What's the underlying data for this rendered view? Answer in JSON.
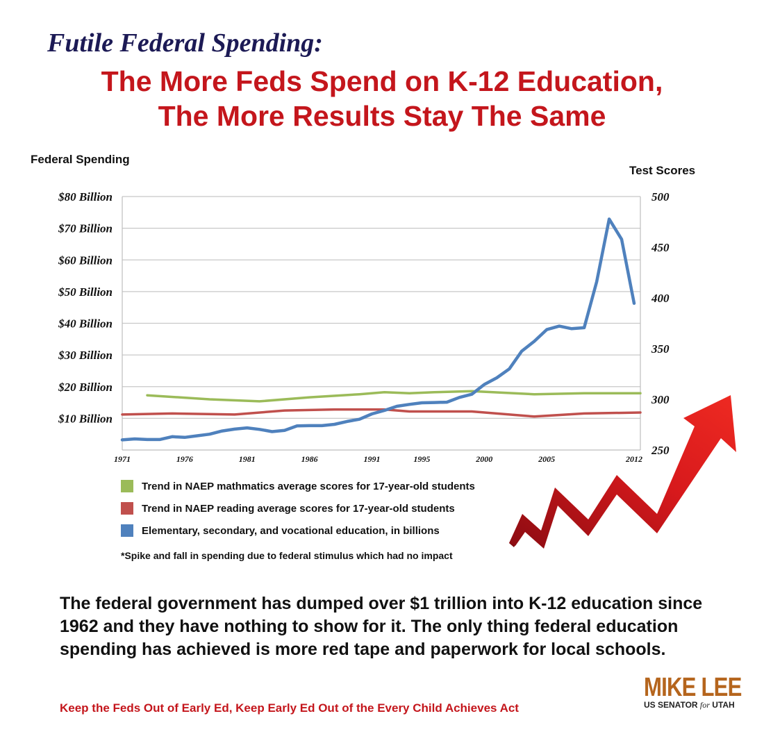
{
  "kicker": "Futile Federal Spending:",
  "headline": {
    "line1": "The More Feds Spend on K-12 Education,",
    "line2": "The More Results Stay The Same"
  },
  "axis_titles": {
    "left": "Federal Spending",
    "right": "Test Scores"
  },
  "legend": [
    {
      "label": "Trend in NAEP mathmatics average scores for 17-year-old students",
      "color": "#9bbb59"
    },
    {
      "label": "Trend in NAEP reading average scores for 17-year-old students",
      "color": "#c0504d"
    },
    {
      "label": "Elementary, secondary, and vocational education, in billions",
      "color": "#4f81bd"
    }
  ],
  "footnote": "*Spike and fall in spending due to federal stimulus which had no impact",
  "body_text": "The federal government has dumped over $1 trillion into K-12 education since 1962 and they have nothing to show for it. The only thing federal education spending has achieved is more red tape and paperwork for local schools.",
  "tagline": "Keep the Feds Out of Early Ed, Keep Early Ed Out of the Every Child Achieves Act",
  "brand": {
    "name": "MIKE LEE",
    "sub_prefix": "US SENATOR",
    "sub_for": "for",
    "sub_state": "UTAH",
    "color": "#b5651d"
  },
  "decor": {
    "arrow_icon": "red-zigzag-up-arrow",
    "arrow_color": "#d7191c"
  },
  "chart_data": {
    "type": "line",
    "title": "",
    "xlabel": "",
    "ylabel_left": "Federal Spending",
    "ylabel_right": "Test Scores",
    "x_ticks": [
      "1971",
      "1976",
      "1981",
      "1986",
      "1991",
      "1995",
      "2000",
      "2005",
      "2012"
    ],
    "y_left_ticks": [
      "$10 Billion",
      "$20 Billion",
      "$30 Billion",
      "$40 Billion",
      "$50 Billion",
      "$60 Billion",
      "$70 Billion",
      "$80 Billion"
    ],
    "y_left_lim": [
      0,
      80
    ],
    "y_right_ticks": [
      "250",
      "300",
      "350",
      "400",
      "450",
      "500"
    ],
    "y_right_lim": [
      250,
      500
    ],
    "x_lim": [
      1971,
      2012.5
    ],
    "grid": "horizontal",
    "legend_position": "bottom-left",
    "series": [
      {
        "name": "Trend in NAEP mathmatics average scores for 17-year-old students",
        "axis": "right",
        "color": "#9bbb59",
        "x": [
          1973,
          1978,
          1982,
          1986,
          1990,
          1992,
          1994,
          1996,
          1999,
          2004,
          2008,
          2012.5
        ],
        "values": [
          304,
          300,
          298,
          302,
          305,
          307,
          306,
          307,
          308,
          305,
          306,
          306
        ]
      },
      {
        "name": "Trend in NAEP reading average scores for 17-year-old students",
        "axis": "right",
        "color": "#c0504d",
        "x": [
          1971,
          1975,
          1980,
          1984,
          1988,
          1992,
          1994,
          1996,
          1999,
          2004,
          2008,
          2012.5
        ],
        "values": [
          285,
          286,
          285,
          289,
          290,
          290,
          288,
          288,
          288,
          283,
          286,
          287
        ]
      },
      {
        "name": "Elementary, secondary, and vocational education, in billions",
        "axis": "left",
        "color": "#4f81bd",
        "x": [
          1971,
          1972,
          1973,
          1974,
          1975,
          1976,
          1977,
          1978,
          1979,
          1980,
          1981,
          1982,
          1983,
          1984,
          1985,
          1986,
          1987,
          1988,
          1989,
          1990,
          1991,
          1992,
          1993,
          1994,
          1995,
          1996,
          1997,
          1998,
          1999,
          2000,
          2001,
          2002,
          2003,
          2004,
          2005,
          2006,
          2007,
          2008,
          2009,
          2010,
          2011,
          2012
        ],
        "values": [
          3.2,
          3.5,
          3.3,
          3.3,
          4.2,
          4.0,
          4.5,
          5.0,
          6.0,
          6.6,
          7.0,
          6.5,
          5.8,
          6.2,
          7.6,
          7.7,
          7.7,
          8.1,
          9.0,
          9.7,
          11.4,
          12.5,
          13.8,
          14.4,
          14.9,
          15.0,
          15.1,
          16.6,
          17.6,
          20.7,
          22.8,
          25.6,
          31.2,
          34.3,
          38.0,
          39.1,
          38.3,
          38.6,
          53.1,
          72.9,
          66.5,
          46.3
        ]
      }
    ]
  }
}
